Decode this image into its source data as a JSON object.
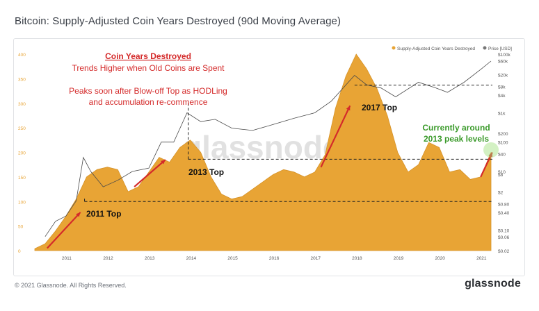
{
  "title": "Bitcoin: Supply-Adjusted Coin Years Destroyed (90d Moving Average)",
  "footer": {
    "copyright": "© 2021 Glassnode. All Rights Reserved.",
    "brand": "glassnode"
  },
  "watermark": "glassnode",
  "colors": {
    "area": "#E8A435",
    "price": "#4a4a4a",
    "red": "#d42a2a",
    "green": "#3a9a2a",
    "left_axis": "#E8A435",
    "text": "#333333"
  },
  "chart_data": {
    "type": "area",
    "legend": [
      {
        "name": "Supply-Adjusted Coin Years Destroyed",
        "color": "#E8A435"
      },
      {
        "name": "Price [USD]",
        "color": "#777777"
      }
    ],
    "legend_position": "top-right",
    "x_ticks": [
      "2011",
      "2012",
      "2013",
      "2014",
      "2015",
      "2016",
      "2017",
      "2018",
      "2019",
      "2020",
      "2021"
    ],
    "left_axis": {
      "ticks": [
        0,
        50,
        100,
        150,
        200,
        250,
        300,
        350,
        400
      ],
      "ylim": [
        0,
        400
      ]
    },
    "right_axis": {
      "scale": "log",
      "ticks": [
        "$0.02",
        "$0.06",
        "$0.10",
        "$0.40",
        "$0.80",
        "$2",
        "$8",
        "$10",
        "$40",
        "$100",
        "$200",
        "$1k",
        "$4k",
        "$8k",
        "$20k",
        "$60k",
        "$100k"
      ]
    },
    "series": [
      {
        "name": "Supply-Adjusted Coin Years Destroyed",
        "x": [
          2010.25,
          2010.5,
          2010.75,
          2011.0,
          2011.25,
          2011.5,
          2011.75,
          2012.0,
          2012.25,
          2012.5,
          2012.75,
          2013.0,
          2013.25,
          2013.5,
          2013.75,
          2014.0,
          2014.25,
          2014.5,
          2014.75,
          2015.0,
          2015.25,
          2015.5,
          2015.75,
          2016.0,
          2016.25,
          2016.5,
          2016.75,
          2017.0,
          2017.25,
          2017.5,
          2017.75,
          2018.0,
          2018.25,
          2018.5,
          2018.75,
          2019.0,
          2019.25,
          2019.5,
          2019.75,
          2020.0,
          2020.25,
          2020.5,
          2020.75,
          2021.0,
          2021.25
        ],
        "values": [
          4,
          14,
          40,
          70,
          105,
          150,
          165,
          170,
          165,
          120,
          130,
          160,
          190,
          180,
          210,
          225,
          200,
          150,
          115,
          105,
          110,
          125,
          140,
          155,
          165,
          160,
          150,
          160,
          195,
          290,
          355,
          400,
          370,
          330,
          275,
          200,
          160,
          175,
          220,
          210,
          160,
          165,
          145,
          150,
          200
        ]
      },
      {
        "name": "Price [USD]",
        "x": [
          2010.5,
          2010.75,
          2011.0,
          2011.25,
          2011.42,
          2011.6,
          2011.9,
          2012.25,
          2012.6,
          2013.0,
          2013.3,
          2013.6,
          2013.92,
          2014.25,
          2014.6,
          2015.0,
          2015.5,
          2016.0,
          2016.5,
          2017.0,
          2017.4,
          2017.96,
          2018.25,
          2018.6,
          2018.95,
          2019.5,
          2019.9,
          2020.2,
          2020.6,
          2021.0,
          2021.25
        ],
        "values": [
          0.06,
          0.2,
          0.3,
          1,
          30,
          10,
          3,
          5,
          10,
          13,
          100,
          100,
          1000,
          500,
          600,
          300,
          250,
          400,
          650,
          1000,
          2500,
          19000,
          9000,
          7000,
          3500,
          11000,
          7200,
          5000,
          11000,
          30000,
          58000
        ]
      }
    ],
    "annotations": {
      "heading": "Coin Years Destroyed",
      "line1": "Trends Higher when Old Coins are Spent",
      "line2": "Peaks soon after Blow-off Top as HODLing",
      "line3": "and accumulation re-commence",
      "tops": [
        "2011 Top",
        "2013 Top",
        "2017 Top"
      ],
      "current_line1": "Currently around",
      "current_line2": "2013 peak levels"
    }
  }
}
